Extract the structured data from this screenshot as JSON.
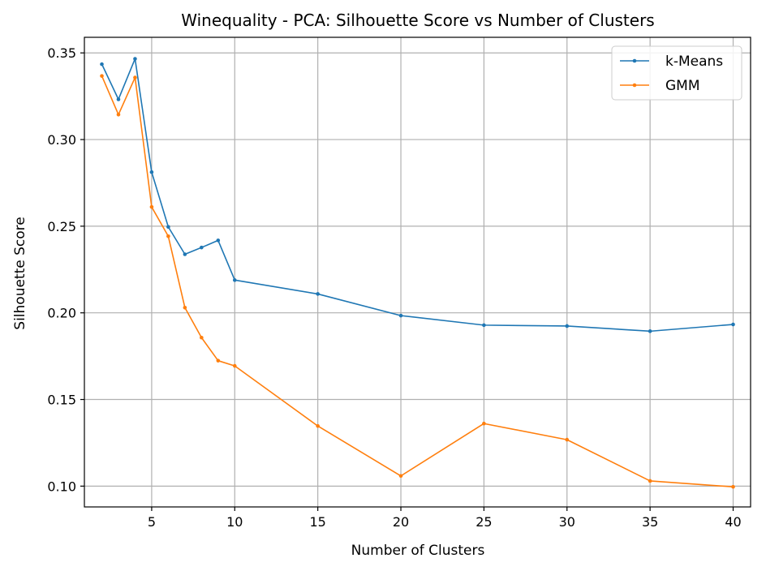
{
  "chart_data": {
    "type": "line",
    "title": "Winequality - PCA: Silhouette Score vs Number of Clusters",
    "xlabel": "Number of Clusters",
    "ylabel": "Silhouette Score",
    "x": [
      2,
      3,
      4,
      5,
      6,
      7,
      8,
      9,
      10,
      15,
      20,
      25,
      30,
      35,
      40
    ],
    "xlim": [
      0.95,
      41.05
    ],
    "ylim": [
      0.088,
      0.359
    ],
    "xticks": [
      5,
      10,
      15,
      20,
      25,
      30,
      35,
      40
    ],
    "xtick_labels": [
      "5",
      "10",
      "15",
      "20",
      "25",
      "30",
      "35",
      "40"
    ],
    "yticks": [
      0.1,
      0.15,
      0.2,
      0.25,
      0.3,
      0.35
    ],
    "ytick_labels": [
      "0.10",
      "0.15",
      "0.20",
      "0.25",
      "0.30",
      "0.35"
    ],
    "grid": true,
    "legend_position": "top-right",
    "series": [
      {
        "name": "k-Means",
        "color": "#1f77b4",
        "values": [
          0.3435,
          0.3232,
          0.3466,
          0.2812,
          0.2496,
          0.2338,
          0.2377,
          0.2418,
          0.2189,
          0.2109,
          0.1984,
          0.1929,
          0.1924,
          0.1894,
          0.1933
        ]
      },
      {
        "name": "GMM",
        "color": "#ff7f0e",
        "values": [
          0.3367,
          0.3144,
          0.3358,
          0.2611,
          0.2442,
          0.203,
          0.1857,
          0.1724,
          0.1694,
          0.1347,
          0.1059,
          0.1361,
          0.1268,
          0.103,
          0.0996
        ]
      }
    ]
  }
}
